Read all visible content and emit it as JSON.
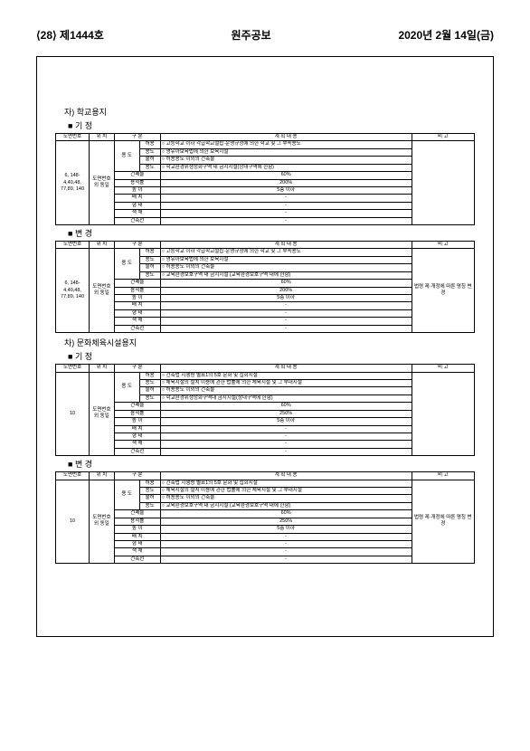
{
  "header": {
    "left": "⟨28⟩ 제1444호",
    "center": "원주공보",
    "right": "2020년 2월 14일(금)"
  },
  "global_cols": {
    "col_a": "도면번호",
    "col_b": "위 치",
    "col_c": "구 분",
    "plan_title": "계 획 내 용",
    "remark": "비 고",
    "yongdo": "용 도",
    "sub_heo": "허용",
    "sub_yong": "용도",
    "sub_bul": "불허",
    "gpr": "건폐율",
    "yjr": "용적률",
    "hi": "높 이",
    "bchi": "배 치",
    "ht": "형 태",
    "sk": "색 채",
    "gcs": "건축선",
    "dvloc": "도면번호외 동일",
    "na": "-"
  },
  "section_ja": {
    "title": "자) 학교용지",
    "gijeong": {
      "label": "기 정",
      "loc": "6, 148-4,40,48, 77,89, 140",
      "row_heo": "○ 고등학교 이하 각급학교설립·운영규정에 의한 학교 및 그 부속용도",
      "row_yong": "○ 영유아보육법에 의한 보육시설",
      "row_bul2": "○ 학교환경위생정화구역 내 금지시설(상대구역에 한함)",
      "row_bul1": "○ 허용용도 이외의 건축물",
      "gpr": "60%",
      "yjr": "200%",
      "hi": "5층 이하"
    },
    "byeon": {
      "label": "변 경",
      "loc": "6, 148-4,40,48, 77,89, 140",
      "row_heo": "○ 고등학교 이하 각급학교설립·운영규정에 의한 학교 및 그 부속용도",
      "row_yong": "○ 영유아보육법에 의한 보육시설",
      "row_bul1": "○ 허용용도 이외의 건축물",
      "row_bul2": "○ 교육환경보호구역 내 금지시설 (교육환경보호구역 내에 한함)",
      "gpr": "60%",
      "yjr": "200%",
      "hi": "5층 이하",
      "remark": "법령 제·개정에 따른 명칭 변경"
    }
  },
  "section_cha": {
    "title": "차) 문화체육시설용지",
    "gijeong": {
      "label": "기 정",
      "loc": "10",
      "row_heo": "○ 건축법 시행령 별표1의 5호 문화 및 집회시설",
      "row_yong": "○ 체육시설의 설치 이용에 관한 법률에 의한 체육시설 및 그 부대시설",
      "row_bul1": "○ 허용용도 이외의 건축물",
      "row_bul2": "○ 학교환경위생정화구역내 금지시설(상대구역에 한함)",
      "gpr": "60%",
      "yjr": "250%",
      "hi": "5층 이하"
    },
    "byeon": {
      "label": "변 경",
      "loc": "10",
      "row_heo": "○ 건축법 시행령 별표1의 5호 문화 및 집회시설",
      "row_yong": "○ 체육시설의 설치 이용에 관한 법률에 의한 체육시설 및 그 부대시설",
      "row_bul1": "○ 허용용도 이외의 건축물",
      "row_bul2": "○ 교육환경보호구역 내 금지시설 (교육환경보호구역 내에 한함)",
      "gpr": "60%",
      "yjr": "250%",
      "hi": "5층 이하",
      "remark": "법령 제·개정에 따른 명칭 변경"
    }
  }
}
